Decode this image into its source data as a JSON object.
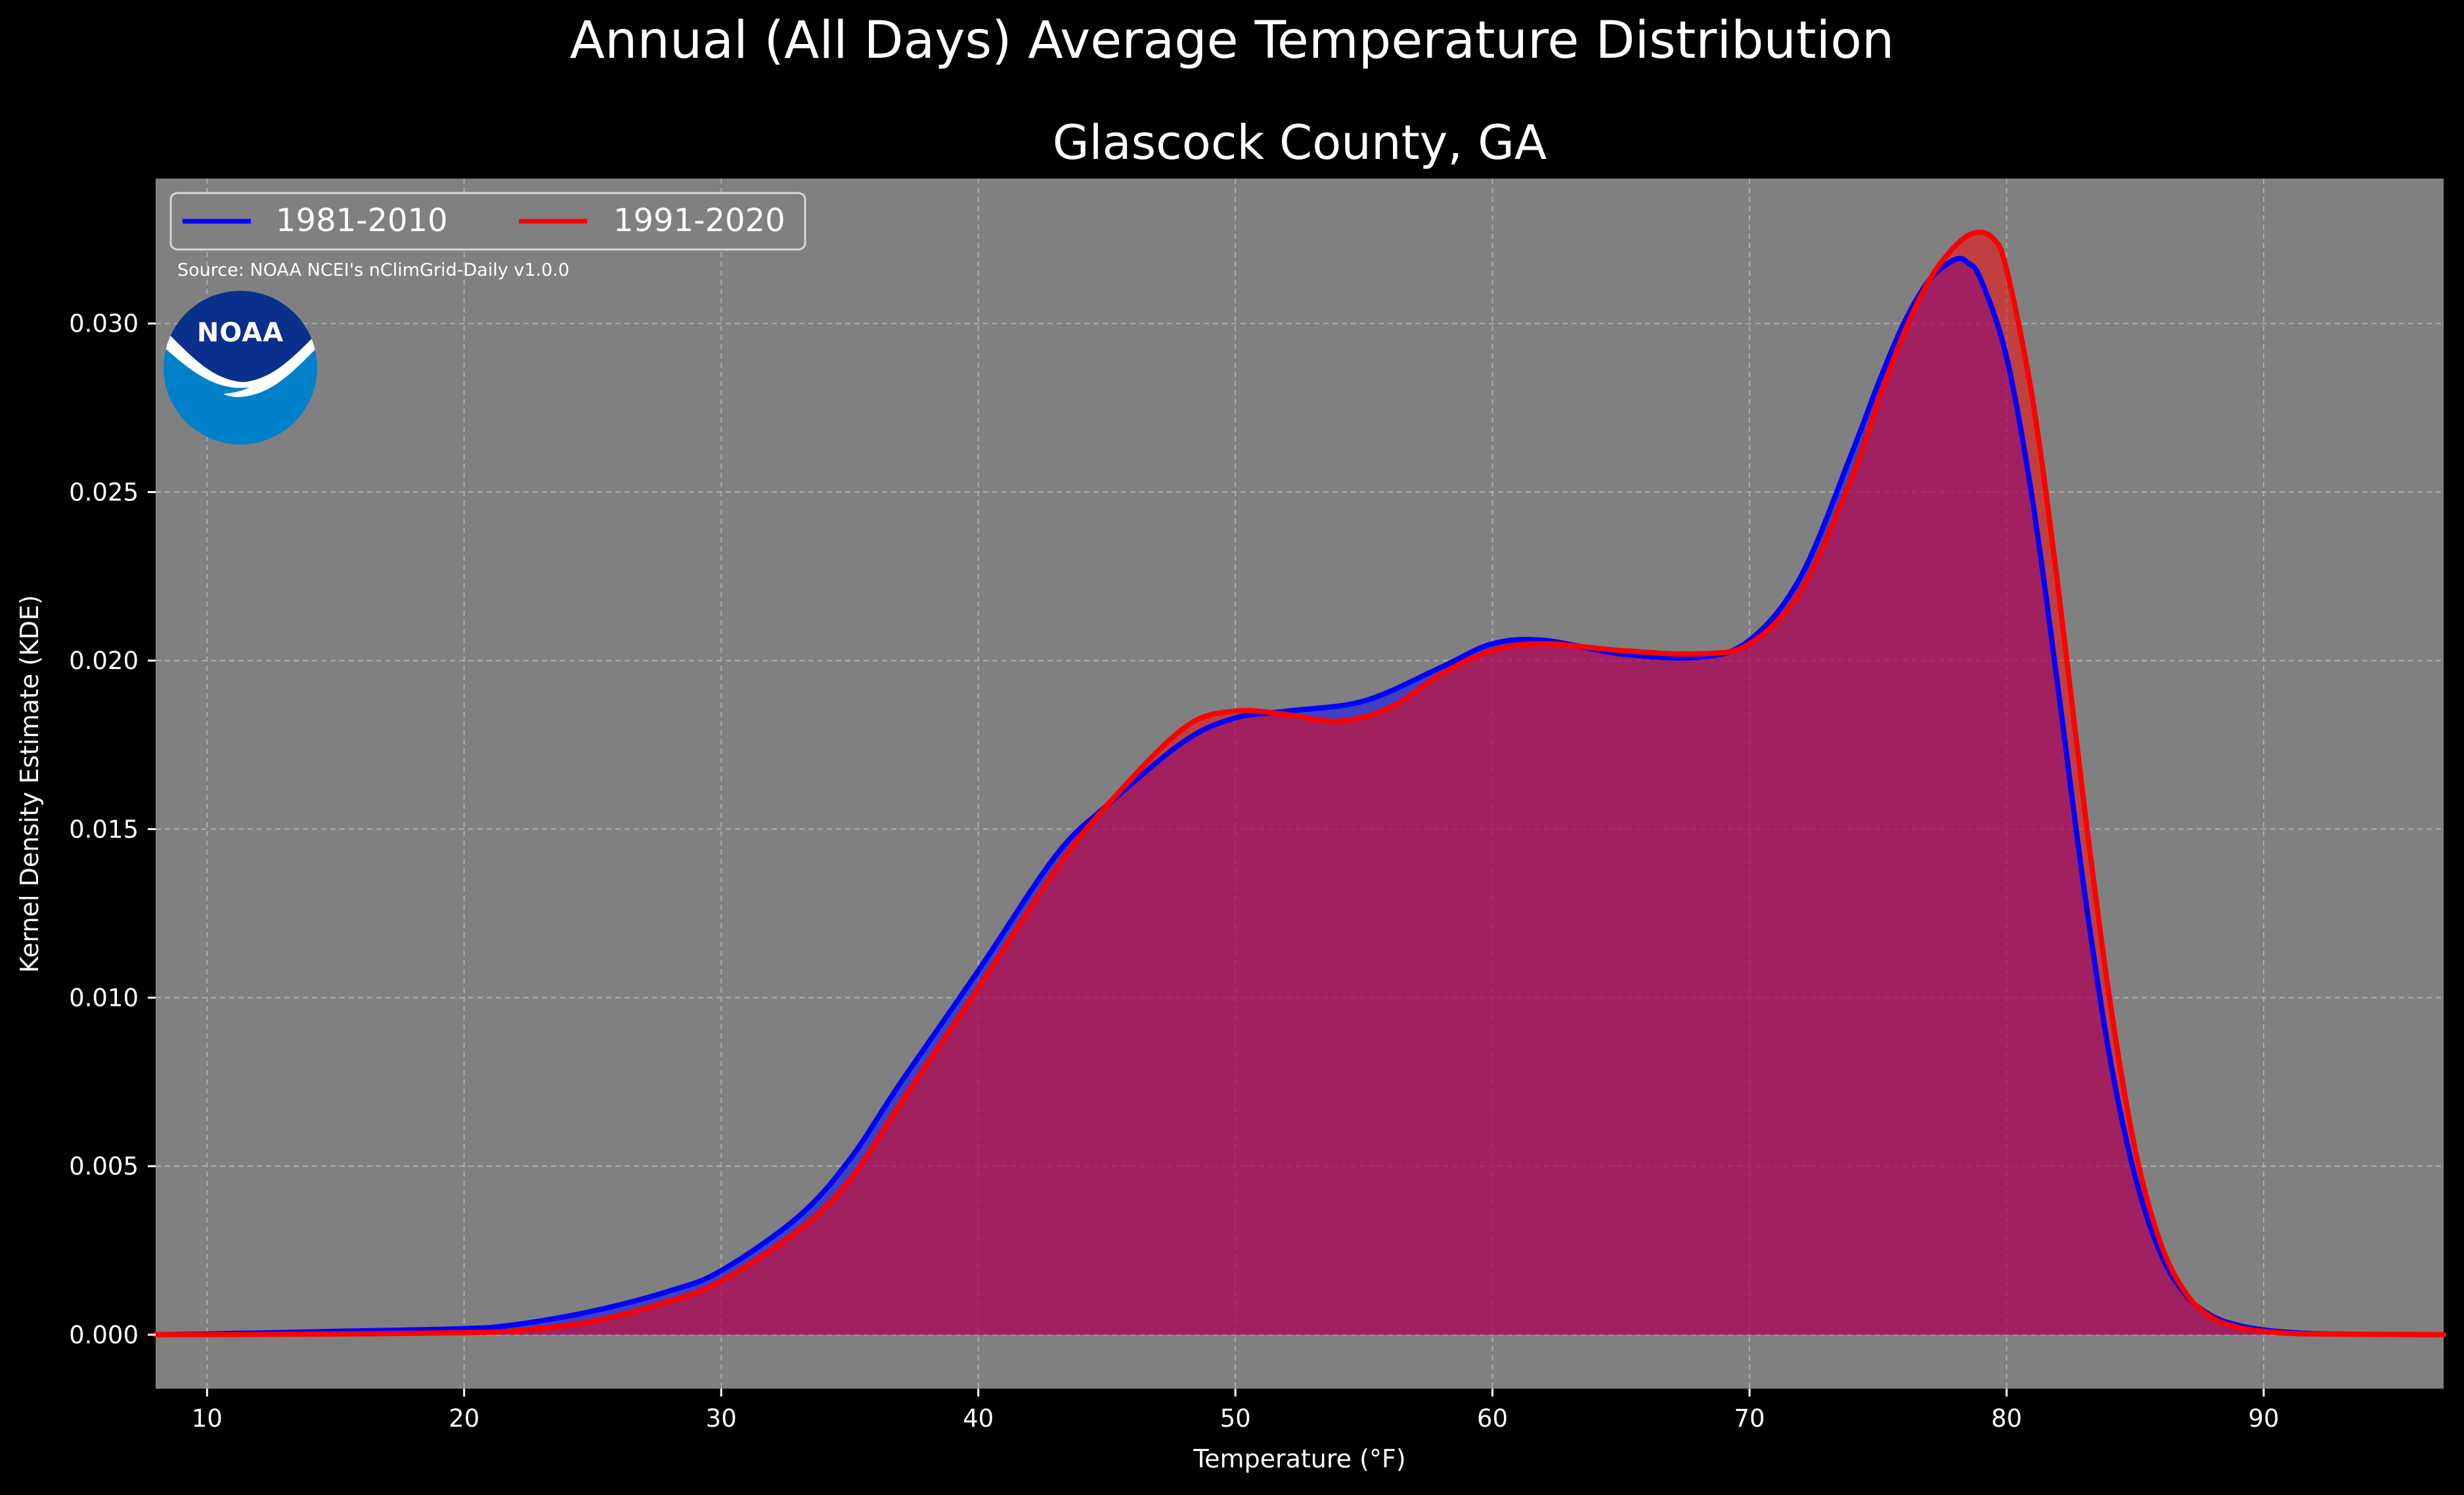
{
  "figure": {
    "suptitle": "Annual (All Days) Average Temperature Distribution",
    "title": "Glascock County, GA",
    "source": "Source: NOAA NCEI's nClimGrid-Daily v1.0.0",
    "logo_text": "NOAA"
  },
  "colors": {
    "background": "#000000",
    "plot_bg": "#808080",
    "series_1981": "#0000ff",
    "series_1991": "#ff0000",
    "logo_dark": "#0a2f8c",
    "logo_light": "#0081c9"
  },
  "chart_data": {
    "type": "area",
    "title": "Glascock County, GA",
    "xlabel": "Temperature ($^\\circ$F)",
    "xlabel_display": "Temperature (°F)",
    "ylabel": "Kernel Density Estimate (KDE)",
    "xlim": [
      8,
      97
    ],
    "ylim": [
      -0.0016,
      0.0343
    ],
    "xticks": [
      10,
      20,
      30,
      40,
      50,
      60,
      70,
      80,
      90
    ],
    "yticks": [
      0.0,
      0.005,
      0.01,
      0.015,
      0.02,
      0.025,
      0.03
    ],
    "ytick_labels": [
      "0.000",
      "0.005",
      "0.010",
      "0.015",
      "0.020",
      "0.025",
      "0.030"
    ],
    "grid": true,
    "legend": "top-left",
    "series": [
      {
        "name": "1981-2010",
        "color": "#0000ff",
        "x": [
          8,
          10,
          15,
          20,
          22,
          25,
          28,
          30,
          33,
          35,
          37,
          40,
          43,
          45,
          48,
          50,
          52,
          55,
          58,
          60,
          62,
          65,
          68,
          70,
          72,
          74,
          75,
          76,
          77,
          78,
          78.5,
          79,
          80,
          81,
          82,
          83,
          84,
          85,
          86,
          87,
          88,
          89,
          90,
          91,
          92,
          94,
          97
        ],
        "y": [
          0.0,
          2e-05,
          0.0001,
          0.00018,
          0.0003,
          0.0007,
          0.0013,
          0.0019,
          0.0035,
          0.0052,
          0.0075,
          0.0108,
          0.0142,
          0.0157,
          0.0176,
          0.0183,
          0.0185,
          0.0188,
          0.0198,
          0.0205,
          0.0206,
          0.0202,
          0.0201,
          0.0206,
          0.0225,
          0.0262,
          0.0282,
          0.03,
          0.0313,
          0.0319,
          0.0318,
          0.0313,
          0.029,
          0.0248,
          0.0192,
          0.0133,
          0.0083,
          0.0047,
          0.0024,
          0.00115,
          0.00055,
          0.00028,
          0.00014,
          7e-05,
          3e-05,
          1e-05,
          0.0
        ]
      },
      {
        "name": "1991-2020",
        "color": "#ff0000",
        "x": [
          8,
          10,
          15,
          20,
          22,
          25,
          28,
          30,
          33,
          35,
          37,
          40,
          43,
          45,
          48,
          50,
          52,
          54,
          56,
          58,
          60,
          62,
          65,
          68,
          70,
          72,
          74,
          75,
          76,
          77,
          78,
          78.8,
          79.5,
          80,
          81,
          82,
          83,
          84,
          85,
          86,
          87,
          88,
          89,
          90,
          91,
          92,
          94,
          97
        ],
        "y": [
          0.0,
          0.0,
          2e-05,
          6e-05,
          0.00012,
          0.0004,
          0.001,
          0.0016,
          0.0031,
          0.0046,
          0.0069,
          0.0103,
          0.0138,
          0.0157,
          0.018,
          0.0185,
          0.0184,
          0.0182,
          0.0186,
          0.0196,
          0.0203,
          0.0205,
          0.0203,
          0.0202,
          0.0205,
          0.0221,
          0.0255,
          0.0277,
          0.0297,
          0.0313,
          0.0323,
          0.0327,
          0.0325,
          0.0316,
          0.0278,
          0.0222,
          0.0158,
          0.01,
          0.0055,
          0.0027,
          0.0012,
          0.0005,
          0.00022,
          0.0001,
          4e-05,
          2e-05,
          1e-05,
          0.0
        ]
      }
    ]
  }
}
